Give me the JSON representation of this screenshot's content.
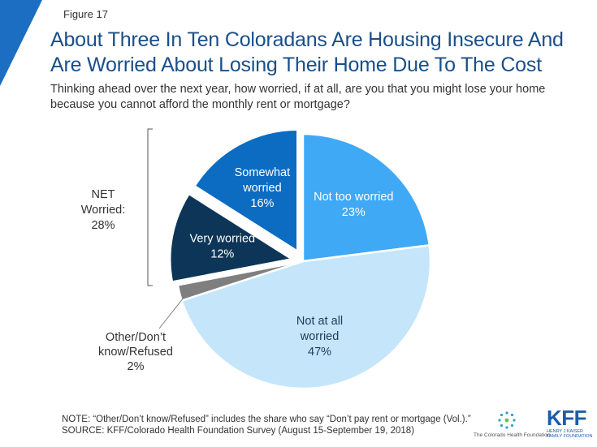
{
  "figure_label": "Figure 17",
  "chart_data": {
    "type": "pie",
    "title": "About Three In Ten Coloradans Are Housing Insecure And Are Worried About Losing Their Home Due To The Cost",
    "subtitle": "Thinking ahead over the next year, how worried, if at all, are you that you might lose your home because you cannot afford the monthly rent or mortgage?",
    "slices": [
      {
        "label": [
          "Not too worried"
        ],
        "value_label": "23%",
        "value": 23,
        "color": "#3fa9f5",
        "text_color": "#ffffff",
        "exploded": false
      },
      {
        "label": [
          "Not at all",
          "worried"
        ],
        "value_label": "47%",
        "value": 47,
        "color": "#c5e5fb",
        "text_color": "#1f3a5a",
        "exploded": false
      },
      {
        "label": [
          "Other/Don’t",
          "know/Refused"
        ],
        "value_label": "2%",
        "value": 2,
        "color": "#7f7f7f",
        "text_color": "#333333",
        "exploded": false
      },
      {
        "label": [
          "Very worried"
        ],
        "value_label": "12%",
        "value": 12,
        "color": "#0d3557",
        "text_color": "#ffffff",
        "exploded": true
      },
      {
        "label": [
          "Somewhat",
          "worried"
        ],
        "value_label": "16%",
        "value": 16,
        "color": "#0b6cc2",
        "text_color": "#ffffff",
        "exploded": true
      }
    ],
    "net_group": {
      "lines": [
        "NET",
        "Worried:",
        "28%"
      ]
    }
  },
  "notes": [
    "NOTE: “Other/Don’t know/Refused” includes the share who say “Don’t pay rent or mortgage (Vol.).”",
    "SOURCE: KFF/Colorado Health Foundation Survey (August 15-September 19, 2018)"
  ],
  "logos": {
    "chf": "The Colorado Health Foundation",
    "kff": "KFF",
    "kff_sub_1": "HENRY J KAISER",
    "kff_sub_2": "FAMILY FOUNDATION"
  },
  "colors": {
    "accent": "#1a4f8a",
    "corner": "#1b6ec2"
  }
}
